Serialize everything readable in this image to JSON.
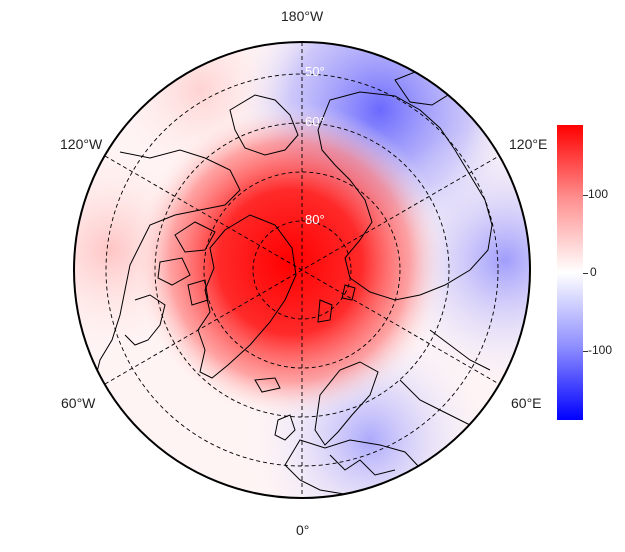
{
  "map": {
    "projection": "north-polar-stereographic",
    "longitude_labels": {
      "top": "180°W",
      "top_left": "120°W",
      "top_right": "120°E",
      "bottom_left": "60°W",
      "bottom_right": "60°E",
      "bottom": "0°"
    },
    "latitude_labels": {
      "lat50": "50°",
      "lat60": "60°",
      "lat80": "80°"
    },
    "graticule": "dashed",
    "field": {
      "description_colors": {
        "positive": "#ff0000",
        "zero": "#ffffff",
        "negative": "#0000ff"
      },
      "center_value": 180,
      "pacific_value": -90,
      "europe_value": -50
    }
  },
  "colorbar": {
    "min": -180,
    "max": 180,
    "ticks": [
      "100",
      "0",
      "-100"
    ],
    "top_color": "#ff0000",
    "mid_color": "#ffffff",
    "bottom_color": "#0000ff"
  }
}
